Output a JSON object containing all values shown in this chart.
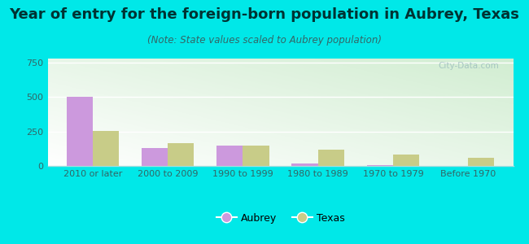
{
  "title": "Year of entry for the foreign-born population in Aubrey, Texas",
  "subtitle": "(Note: State values scaled to Aubrey population)",
  "categories": [
    "2010 or later",
    "2000 to 2009",
    "1990 to 1999",
    "1980 to 1989",
    "1970 to 1979",
    "Before 1970"
  ],
  "aubrey_values": [
    505,
    130,
    150,
    18,
    5,
    0
  ],
  "texas_values": [
    255,
    165,
    150,
    120,
    85,
    60
  ],
  "aubrey_color": "#cc99dd",
  "texas_color": "#c8cc88",
  "ylim": [
    0,
    780
  ],
  "yticks": [
    0,
    250,
    500,
    750
  ],
  "bar_width": 0.35,
  "background_color_fig": "#00e8e8",
  "title_color": "#003333",
  "subtitle_color": "#336666",
  "title_fontsize": 13,
  "subtitle_fontsize": 8.5,
  "tick_fontsize": 8,
  "legend_fontsize": 9,
  "watermark_text": "City-Data.com"
}
